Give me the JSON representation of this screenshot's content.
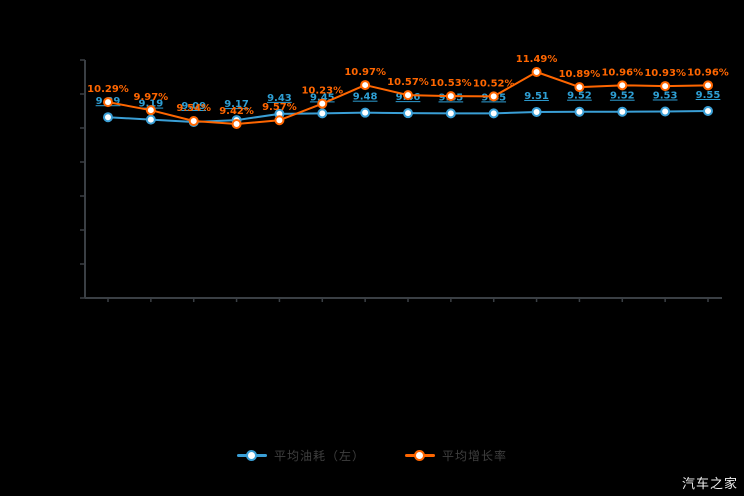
{
  "watermark": "汽车之家",
  "colors": {
    "background": "#000000",
    "axis": "#3a3f44",
    "series_blue": "#3a9fd6",
    "series_orange": "#ff6600",
    "label_blue": "#2e9fd4",
    "label_orange": "#ff6600",
    "legend_text": "#3f3f3f",
    "marker_center": "#ffffff",
    "watermark_text": "#efefef"
  },
  "legend": {
    "items": [
      {
        "label": "平均油耗（左）",
        "series": "blue"
      },
      {
        "label": "平均增长率",
        "series": "orange"
      }
    ]
  },
  "chart_data": {
    "type": "line",
    "title": "",
    "categories": [
      "1",
      "2",
      "3",
      "4",
      "5",
      "6",
      "7",
      "8",
      "9",
      "10",
      "11",
      "12",
      "13",
      "14",
      "15"
    ],
    "x_axis_labels_visible": false,
    "y_axis_labels_visible": false,
    "grid": false,
    "legend_position": "bottom",
    "series": [
      {
        "name": "平均油耗（左）",
        "color": "#3a9fd6",
        "values": [
          9.29,
          9.19,
          9.09,
          9.17,
          9.43,
          9.45,
          9.48,
          9.46,
          9.45,
          9.45,
          9.51,
          9.52,
          9.52,
          9.53,
          9.55
        ],
        "labels": [
          "9.29",
          "9.19",
          "9.09",
          "9.17",
          "9.43",
          "9.45",
          "9.48",
          "9.46",
          "9.45",
          "9.45",
          "9.51",
          "9.52",
          "9.52",
          "9.53",
          "9.55"
        ],
        "label_style": "underline"
      },
      {
        "name": "平均增长率",
        "color": "#ff6600",
        "values": [
          10.29,
          9.97,
          9.54,
          9.42,
          9.57,
          10.23,
          10.97,
          10.57,
          10.53,
          10.52,
          11.49,
          10.89,
          10.96,
          10.93,
          10.96
        ],
        "labels": [
          "10.29%",
          "9.97%",
          "9.54%",
          "9.42%",
          "9.57%",
          "10.23%",
          "10.97%",
          "10.57%",
          "10.53%",
          "10.52%",
          "11.49%",
          "10.89%",
          "10.96%",
          "10.93%",
          "10.96%"
        ],
        "label_style": "plain"
      }
    ]
  }
}
